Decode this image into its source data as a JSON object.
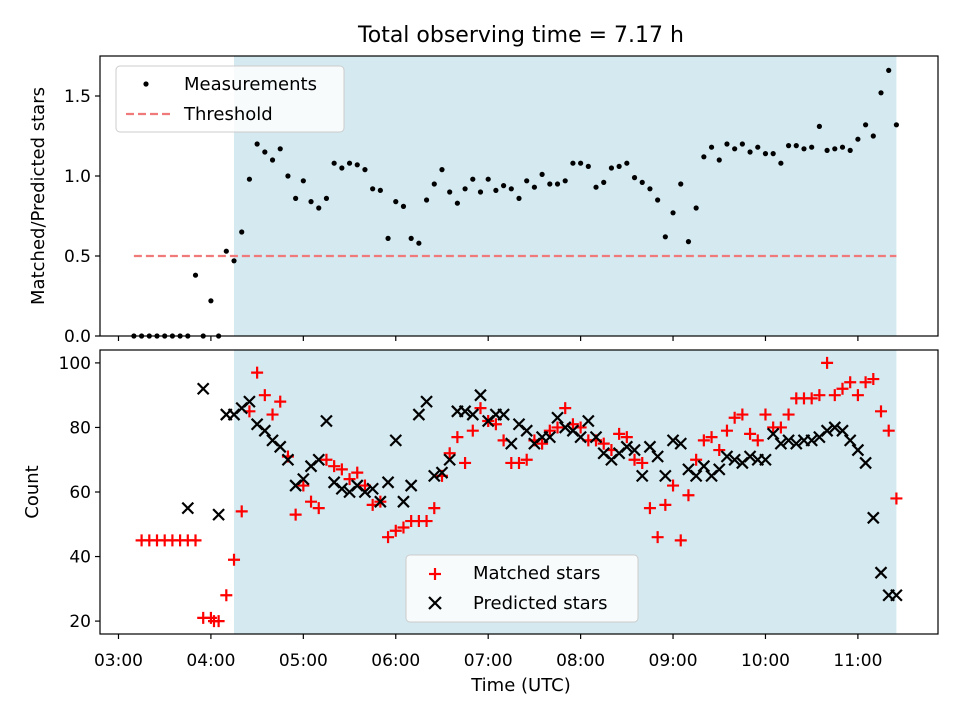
{
  "figure": {
    "title": "Total observing time = 7.17 h",
    "xlabel": "Time (UTC)",
    "x_tick_labels": [
      "03:00",
      "04:00",
      "05:00",
      "06:00",
      "07:00",
      "08:00",
      "09:00",
      "10:00",
      "11:00"
    ],
    "colors": {
      "shade": "#d4e9f0",
      "threshold": "#f07a7a",
      "matched": "#ff0000",
      "predicted": "#000000",
      "measurements": "#000000"
    }
  },
  "chart_data": [
    {
      "type": "scatter",
      "ylabel": "Matched/Predicted stars",
      "xlim": [
        "02:48",
        "11:52"
      ],
      "ylim": [
        0,
        1.75
      ],
      "yticks": [
        0.0,
        0.5,
        1.0,
        1.5
      ],
      "shaded_interval": [
        "04:15",
        "11:25"
      ],
      "legend_placement": "upper-left",
      "series": [
        {
          "name": "Measurements",
          "marker": "dot",
          "x": [
            "03:10",
            "03:15",
            "03:20",
            "03:25",
            "03:30",
            "03:35",
            "03:40",
            "03:45",
            "03:50",
            "03:55",
            "04:00",
            "04:05",
            "04:10",
            "04:15",
            "04:20",
            "04:25",
            "04:30",
            "04:35",
            "04:40",
            "04:45",
            "04:50",
            "04:55",
            "05:00",
            "05:05",
            "05:10",
            "05:15",
            "05:20",
            "05:25",
            "05:30",
            "05:35",
            "05:40",
            "05:45",
            "05:50",
            "05:55",
            "06:00",
            "06:05",
            "06:10",
            "06:15",
            "06:20",
            "06:25",
            "06:30",
            "06:35",
            "06:40",
            "06:45",
            "06:50",
            "06:55",
            "07:00",
            "07:05",
            "07:10",
            "07:15",
            "07:20",
            "07:25",
            "07:30",
            "07:35",
            "07:40",
            "07:45",
            "07:50",
            "07:55",
            "08:00",
            "08:05",
            "08:10",
            "08:15",
            "08:20",
            "08:25",
            "08:30",
            "08:35",
            "08:40",
            "08:45",
            "08:50",
            "08:55",
            "09:00",
            "09:05",
            "09:10",
            "09:15",
            "09:20",
            "09:25",
            "09:30",
            "09:35",
            "09:40",
            "09:45",
            "09:50",
            "09:55",
            "10:00",
            "10:05",
            "10:10",
            "10:15",
            "10:20",
            "10:25",
            "10:30",
            "10:35",
            "10:40",
            "10:45",
            "10:50",
            "10:55",
            "11:00",
            "11:05",
            "11:10",
            "11:15",
            "11:20",
            "11:25"
          ],
          "y": [
            0.0,
            0.0,
            0.0,
            0.0,
            0.0,
            0.0,
            0.0,
            0.0,
            0.38,
            0.0,
            0.22,
            0.0,
            0.53,
            0.47,
            0.65,
            0.98,
            1.2,
            1.15,
            1.1,
            1.17,
            1.0,
            0.86,
            0.97,
            0.84,
            0.8,
            0.86,
            1.08,
            1.05,
            1.08,
            1.07,
            1.04,
            0.92,
            0.91,
            0.61,
            0.84,
            0.81,
            0.61,
            0.58,
            0.85,
            0.95,
            1.04,
            0.9,
            0.83,
            0.92,
            0.98,
            0.9,
            0.98,
            0.91,
            0.94,
            0.92,
            0.86,
            0.97,
            0.93,
            1.01,
            0.95,
            0.95,
            0.97,
            1.08,
            1.08,
            1.06,
            0.93,
            0.96,
            1.05,
            1.06,
            1.08,
            0.99,
            0.96,
            0.92,
            0.85,
            0.62,
            0.77,
            0.95,
            0.59,
            0.8,
            1.12,
            1.18,
            1.1,
            1.2,
            1.17,
            1.2,
            1.15,
            1.18,
            1.14,
            1.14,
            1.08,
            1.19,
            1.19,
            1.17,
            1.18,
            1.31,
            1.16,
            1.17,
            1.18,
            1.16,
            1.23,
            1.32,
            1.25,
            1.52,
            1.66,
            1.32
          ]
        },
        {
          "name": "Threshold",
          "marker": "dashed-line",
          "x": [
            "03:10",
            "11:25"
          ],
          "y": [
            0.5,
            0.5
          ]
        }
      ]
    },
    {
      "type": "scatter",
      "ylabel": "Count",
      "xlim": [
        "02:48",
        "11:52"
      ],
      "ylim": [
        16,
        104
      ],
      "yticks": [
        20,
        40,
        60,
        80,
        100
      ],
      "shaded_interval": [
        "04:15",
        "11:25"
      ],
      "legend_placement": "lower-center",
      "series": [
        {
          "name": "Matched stars",
          "marker": "plus",
          "x": [
            "03:15",
            "03:20",
            "03:25",
            "03:30",
            "03:35",
            "03:40",
            "03:45",
            "03:50",
            "03:55",
            "04:00",
            "04:02",
            "04:05",
            "04:10",
            "04:15",
            "04:20",
            "04:25",
            "04:30",
            "04:35",
            "04:40",
            "04:45",
            "04:50",
            "04:55",
            "05:00",
            "05:05",
            "05:10",
            "05:15",
            "05:20",
            "05:25",
            "05:30",
            "05:35",
            "05:40",
            "05:45",
            "05:50",
            "05:55",
            "06:00",
            "06:05",
            "06:10",
            "06:15",
            "06:20",
            "06:25",
            "06:30",
            "06:35",
            "06:40",
            "06:45",
            "06:50",
            "06:55",
            "07:00",
            "07:05",
            "07:10",
            "07:15",
            "07:20",
            "07:25",
            "07:30",
            "07:35",
            "07:40",
            "07:45",
            "07:50",
            "07:55",
            "08:00",
            "08:05",
            "08:10",
            "08:15",
            "08:20",
            "08:25",
            "08:30",
            "08:35",
            "08:40",
            "08:45",
            "08:50",
            "08:55",
            "09:00",
            "09:05",
            "09:10",
            "09:15",
            "09:20",
            "09:25",
            "09:30",
            "09:35",
            "09:40",
            "09:45",
            "09:50",
            "09:55",
            "10:00",
            "10:05",
            "10:10",
            "10:15",
            "10:20",
            "10:25",
            "10:30",
            "10:35",
            "10:40",
            "10:45",
            "10:50",
            "10:55",
            "11:00",
            "11:05",
            "11:10",
            "11:15",
            "11:20",
            "11:25"
          ],
          "y": [
            45,
            45,
            45,
            45,
            45,
            45,
            45,
            45,
            21,
            21,
            20,
            20,
            28,
            39,
            54,
            85,
            97,
            90,
            84,
            88,
            71,
            53,
            62,
            57,
            55,
            70,
            68,
            67,
            64,
            66,
            62,
            56,
            57,
            46,
            48,
            49,
            51,
            51,
            51,
            55,
            65,
            72,
            77,
            69,
            79,
            86,
            82,
            81,
            76,
            69,
            69,
            70,
            76,
            75,
            79,
            80,
            86,
            81,
            80,
            76,
            76,
            75,
            73,
            78,
            77,
            70,
            69,
            55,
            46,
            56,
            62,
            45,
            59,
            70,
            76,
            77,
            73,
            79,
            83,
            84,
            78,
            76,
            84,
            80,
            80,
            84,
            89,
            89,
            89,
            90,
            100,
            90,
            92,
            94,
            90,
            94,
            95,
            85,
            79,
            58
          ]
        },
        {
          "name": "Predicted stars",
          "marker": "x",
          "x": [
            "03:45",
            "03:55",
            "04:05",
            "04:10",
            "04:15",
            "04:20",
            "04:25",
            "04:30",
            "04:35",
            "04:40",
            "04:45",
            "04:50",
            "04:55",
            "05:00",
            "05:05",
            "05:10",
            "05:15",
            "05:20",
            "05:25",
            "05:30",
            "05:35",
            "05:40",
            "05:45",
            "05:50",
            "05:55",
            "06:00",
            "06:05",
            "06:10",
            "06:15",
            "06:20",
            "06:25",
            "06:30",
            "06:35",
            "06:40",
            "06:45",
            "06:50",
            "06:55",
            "07:00",
            "07:05",
            "07:10",
            "07:15",
            "07:20",
            "07:25",
            "07:30",
            "07:35",
            "07:40",
            "07:45",
            "07:50",
            "07:55",
            "08:00",
            "08:05",
            "08:10",
            "08:15",
            "08:20",
            "08:25",
            "08:30",
            "08:35",
            "08:40",
            "08:45",
            "08:50",
            "08:55",
            "09:00",
            "09:05",
            "09:10",
            "09:15",
            "09:20",
            "09:25",
            "09:30",
            "09:35",
            "09:40",
            "09:45",
            "09:50",
            "09:55",
            "10:00",
            "10:05",
            "10:10",
            "10:15",
            "10:20",
            "10:25",
            "10:30",
            "10:35",
            "10:40",
            "10:45",
            "10:50",
            "10:55",
            "11:00",
            "11:05",
            "11:10",
            "11:15",
            "11:20",
            "11:25"
          ],
          "y": [
            55,
            92,
            53,
            84,
            84,
            86,
            88,
            81,
            79,
            76,
            74,
            70,
            62,
            64,
            68,
            70,
            82,
            63,
            61,
            60,
            62,
            60,
            61,
            57,
            63,
            76,
            57,
            62,
            84,
            88,
            65,
            66,
            70,
            85,
            85,
            84,
            90,
            82,
            84,
            84,
            75,
            81,
            79,
            75,
            77,
            77,
            83,
            80,
            79,
            77,
            82,
            77,
            72,
            70,
            72,
            74,
            73,
            65,
            74,
            71,
            65,
            76,
            75,
            67,
            65,
            68,
            65,
            67,
            71,
            70,
            69,
            71,
            70,
            70,
            78,
            75,
            76,
            75,
            76,
            76,
            77,
            79,
            80,
            79,
            76,
            73,
            69,
            52,
            35,
            28,
            28
          ]
        }
      ]
    }
  ]
}
